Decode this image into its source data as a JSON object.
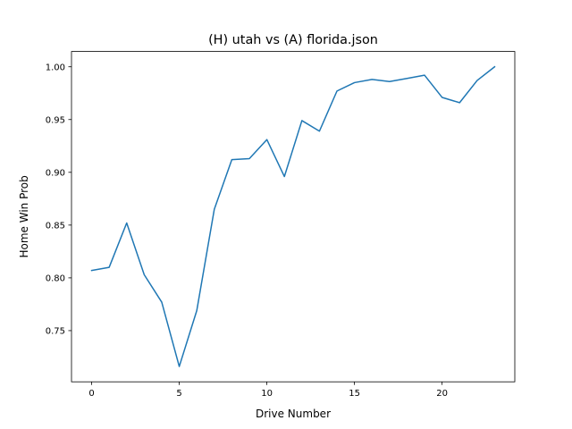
{
  "chart_data": {
    "type": "line",
    "title": "(H) utah vs (A) florida.json",
    "xlabel": "Drive Number",
    "ylabel": "Home Win Prob",
    "xlim": [
      -1.15,
      24.15
    ],
    "ylim": [
      0.7015,
      1.0145
    ],
    "xticks": [
      0,
      5,
      10,
      15,
      20
    ],
    "xtick_labels": [
      "0",
      "5",
      "10",
      "15",
      "20"
    ],
    "yticks": [
      0.75,
      0.8,
      0.85,
      0.9,
      0.95,
      1.0
    ],
    "ytick_labels": [
      "0.75",
      "0.80",
      "0.85",
      "0.90",
      "0.95",
      "1.00"
    ],
    "grid": false,
    "series": [
      {
        "color": "#1f77b4",
        "x": [
          0,
          1,
          2,
          3,
          4,
          5,
          6,
          7,
          8,
          9,
          10,
          11,
          12,
          13,
          14,
          15,
          16,
          17,
          18,
          19,
          20,
          21,
          22,
          23
        ],
        "values": [
          0.807,
          0.81,
          0.852,
          0.803,
          0.777,
          0.716,
          0.769,
          0.865,
          0.912,
          0.913,
          0.931,
          0.896,
          0.949,
          0.939,
          0.977,
          0.985,
          0.988,
          0.986,
          0.989,
          0.992,
          0.971,
          0.966,
          0.987,
          1.0
        ]
      }
    ]
  }
}
